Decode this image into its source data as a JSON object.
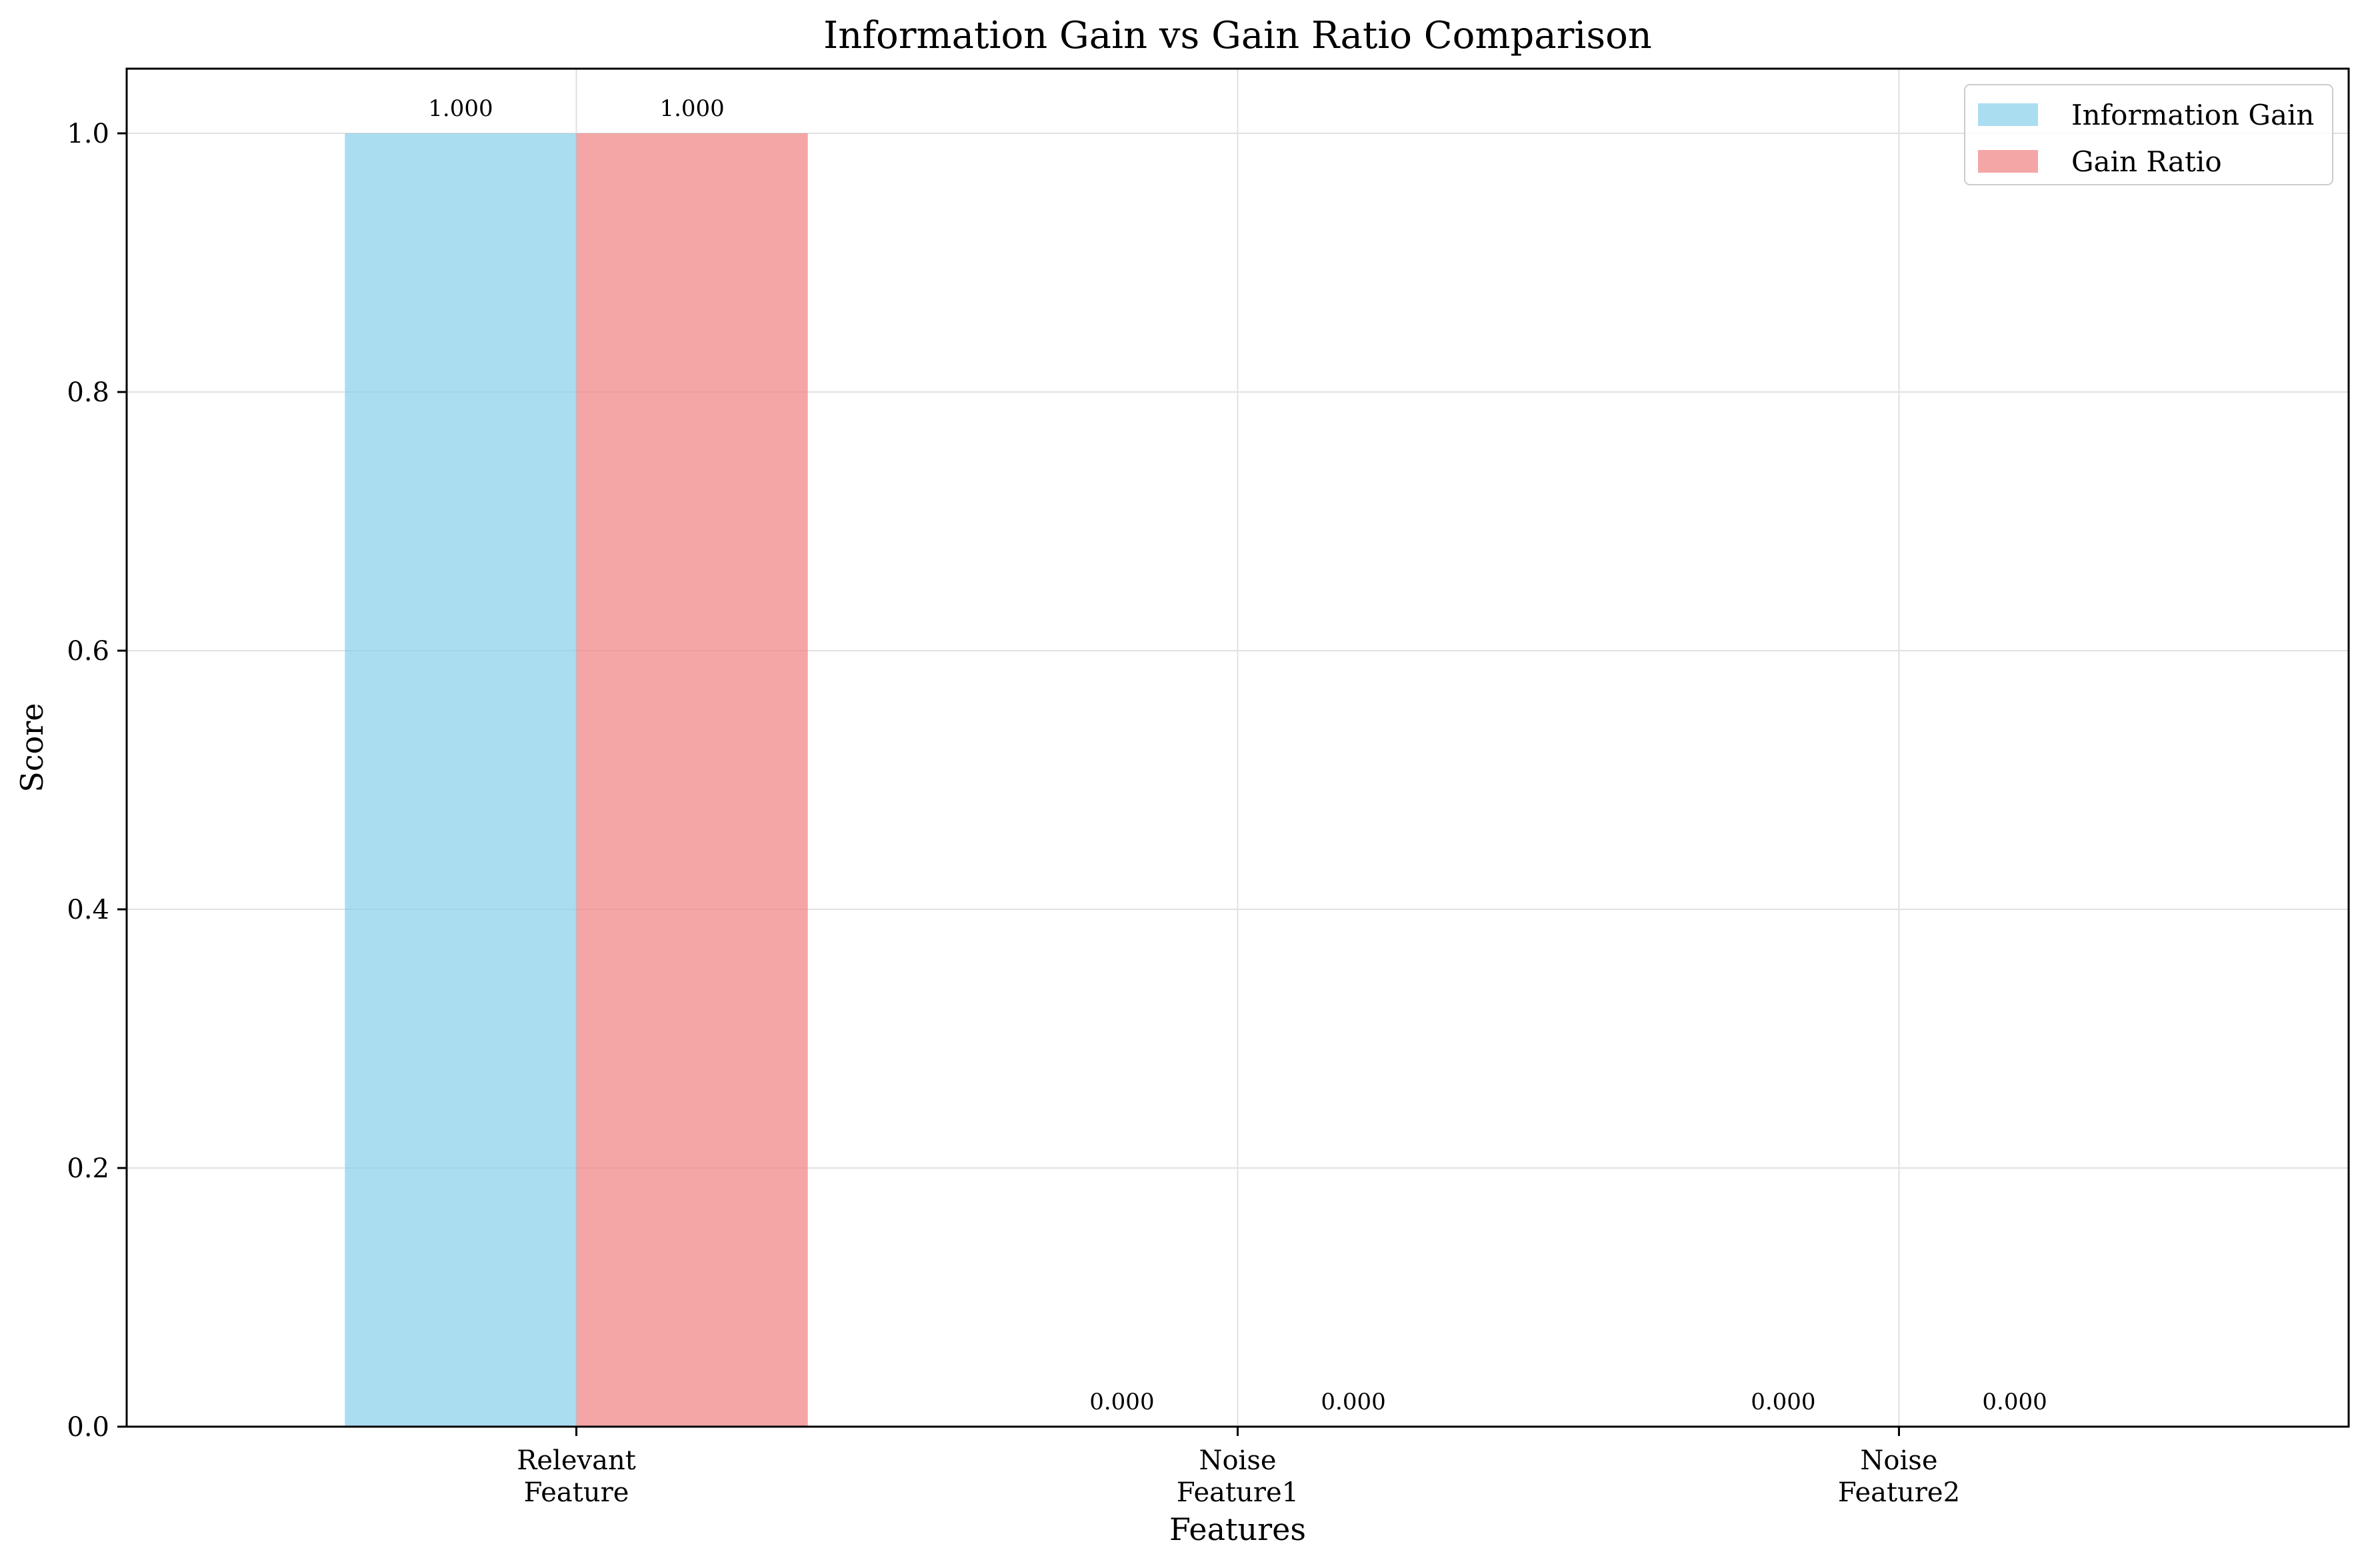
{
  "chart_data": {
    "type": "bar",
    "title": "Information Gain vs Gain Ratio Comparison",
    "xlabel": "Features",
    "ylabel": "Score",
    "categories": [
      [
        "Relevant",
        "Feature"
      ],
      [
        "Noise",
        "Feature1"
      ],
      [
        "Noise",
        "Feature2"
      ]
    ],
    "series": [
      {
        "name": "Information Gain",
        "values": [
          1.0,
          0.0,
          0.0
        ],
        "labels": [
          "1.000",
          "0.000",
          "0.000"
        ],
        "color": "#87CEEB"
      },
      {
        "name": "Gain Ratio",
        "values": [
          1.0,
          0.0,
          0.0
        ],
        "labels": [
          "1.000",
          "0.000",
          "0.000"
        ],
        "color": "#F08080"
      }
    ],
    "ylim": [
      0,
      1.05
    ],
    "yticks": [
      "0.0",
      "0.2",
      "0.4",
      "0.6",
      "0.8",
      "1.0"
    ],
    "grid": true,
    "legend_position": "top-right"
  }
}
